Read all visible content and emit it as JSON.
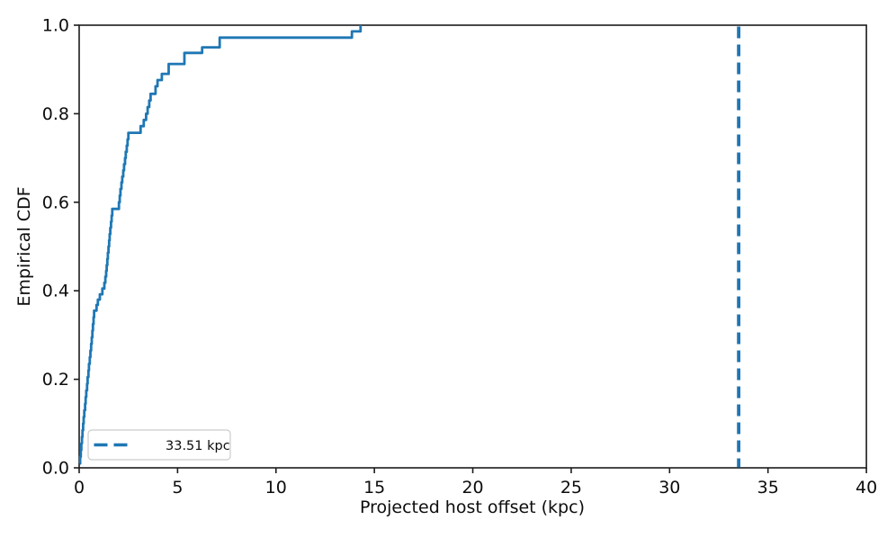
{
  "chart_data": {
    "type": "line",
    "subtype": "ecdf-step",
    "title": "",
    "xlabel": "Projected host offset (kpc)",
    "ylabel": "Empirical CDF",
    "xlim": [
      0,
      40
    ],
    "ylim": [
      0.0,
      1.0
    ],
    "grid": false,
    "xticks": [
      {
        "v": 0,
        "label": "0"
      },
      {
        "v": 5,
        "label": "5"
      },
      {
        "v": 10,
        "label": "10"
      },
      {
        "v": 15,
        "label": "15"
      },
      {
        "v": 20,
        "label": "20"
      },
      {
        "v": 25,
        "label": "25"
      },
      {
        "v": 30,
        "label": "30"
      },
      {
        "v": 35,
        "label": "35"
      },
      {
        "v": 40,
        "label": "40"
      }
    ],
    "yticks": [
      {
        "v": 0.0,
        "label": "0.0"
      },
      {
        "v": 0.2,
        "label": "0.2"
      },
      {
        "v": 0.4,
        "label": "0.4"
      },
      {
        "v": 0.6,
        "label": "0.6"
      },
      {
        "v": 0.8,
        "label": "0.8"
      },
      {
        "v": 1.0,
        "label": "1.0"
      }
    ],
    "legend": {
      "label": "33.51 kpc",
      "position": "lower-left",
      "sample_style": "dashed"
    },
    "vline": {
      "x": 33.51,
      "style": "dashed",
      "color": "#1f77b4",
      "label": "33.51 kpc"
    },
    "series": [
      {
        "name": "Empirical CDF",
        "color": "#1f77b4",
        "draw_style": "steps-post",
        "points": [
          [
            0.02,
            0.01
          ],
          [
            0.05,
            0.025
          ],
          [
            0.08,
            0.04
          ],
          [
            0.11,
            0.055
          ],
          [
            0.14,
            0.07
          ],
          [
            0.17,
            0.085
          ],
          [
            0.2,
            0.1
          ],
          [
            0.23,
            0.115
          ],
          [
            0.26,
            0.13
          ],
          [
            0.3,
            0.145
          ],
          [
            0.33,
            0.16
          ],
          [
            0.36,
            0.175
          ],
          [
            0.4,
            0.19
          ],
          [
            0.43,
            0.205
          ],
          [
            0.47,
            0.22
          ],
          [
            0.5,
            0.235
          ],
          [
            0.54,
            0.25
          ],
          [
            0.57,
            0.265
          ],
          [
            0.61,
            0.28
          ],
          [
            0.64,
            0.295
          ],
          [
            0.67,
            0.31
          ],
          [
            0.7,
            0.325
          ],
          [
            0.73,
            0.34
          ],
          [
            0.76,
            0.355
          ],
          [
            0.88,
            0.368
          ],
          [
            0.95,
            0.38
          ],
          [
            1.05,
            0.392
          ],
          [
            1.18,
            0.405
          ],
          [
            1.28,
            0.418
          ],
          [
            1.33,
            0.432
          ],
          [
            1.37,
            0.445
          ],
          [
            1.4,
            0.458
          ],
          [
            1.43,
            0.472
          ],
          [
            1.46,
            0.486
          ],
          [
            1.49,
            0.5
          ],
          [
            1.52,
            0.514
          ],
          [
            1.55,
            0.528
          ],
          [
            1.58,
            0.542
          ],
          [
            1.62,
            0.556
          ],
          [
            1.65,
            0.57
          ],
          [
            1.68,
            0.585
          ],
          [
            2.02,
            0.6
          ],
          [
            2.06,
            0.615
          ],
          [
            2.1,
            0.63
          ],
          [
            2.15,
            0.645
          ],
          [
            2.19,
            0.658
          ],
          [
            2.24,
            0.672
          ],
          [
            2.28,
            0.686
          ],
          [
            2.33,
            0.7
          ],
          [
            2.37,
            0.714
          ],
          [
            2.42,
            0.728
          ],
          [
            2.46,
            0.742
          ],
          [
            2.5,
            0.757
          ],
          [
            3.12,
            0.772
          ],
          [
            3.28,
            0.786
          ],
          [
            3.4,
            0.8
          ],
          [
            3.48,
            0.815
          ],
          [
            3.56,
            0.83
          ],
          [
            3.63,
            0.845
          ],
          [
            3.88,
            0.862
          ],
          [
            3.98,
            0.876
          ],
          [
            4.2,
            0.89
          ],
          [
            4.55,
            0.9125
          ],
          [
            5.35,
            0.9375
          ],
          [
            6.25,
            0.95
          ],
          [
            7.14,
            0.972
          ],
          [
            13.86,
            0.986
          ],
          [
            14.3,
            1.0
          ]
        ]
      }
    ]
  },
  "colors": {
    "accent_blue": "#1f77b4",
    "axis": "#1c1c1c",
    "legend_border": "#cccccc",
    "background": "#ffffff"
  }
}
